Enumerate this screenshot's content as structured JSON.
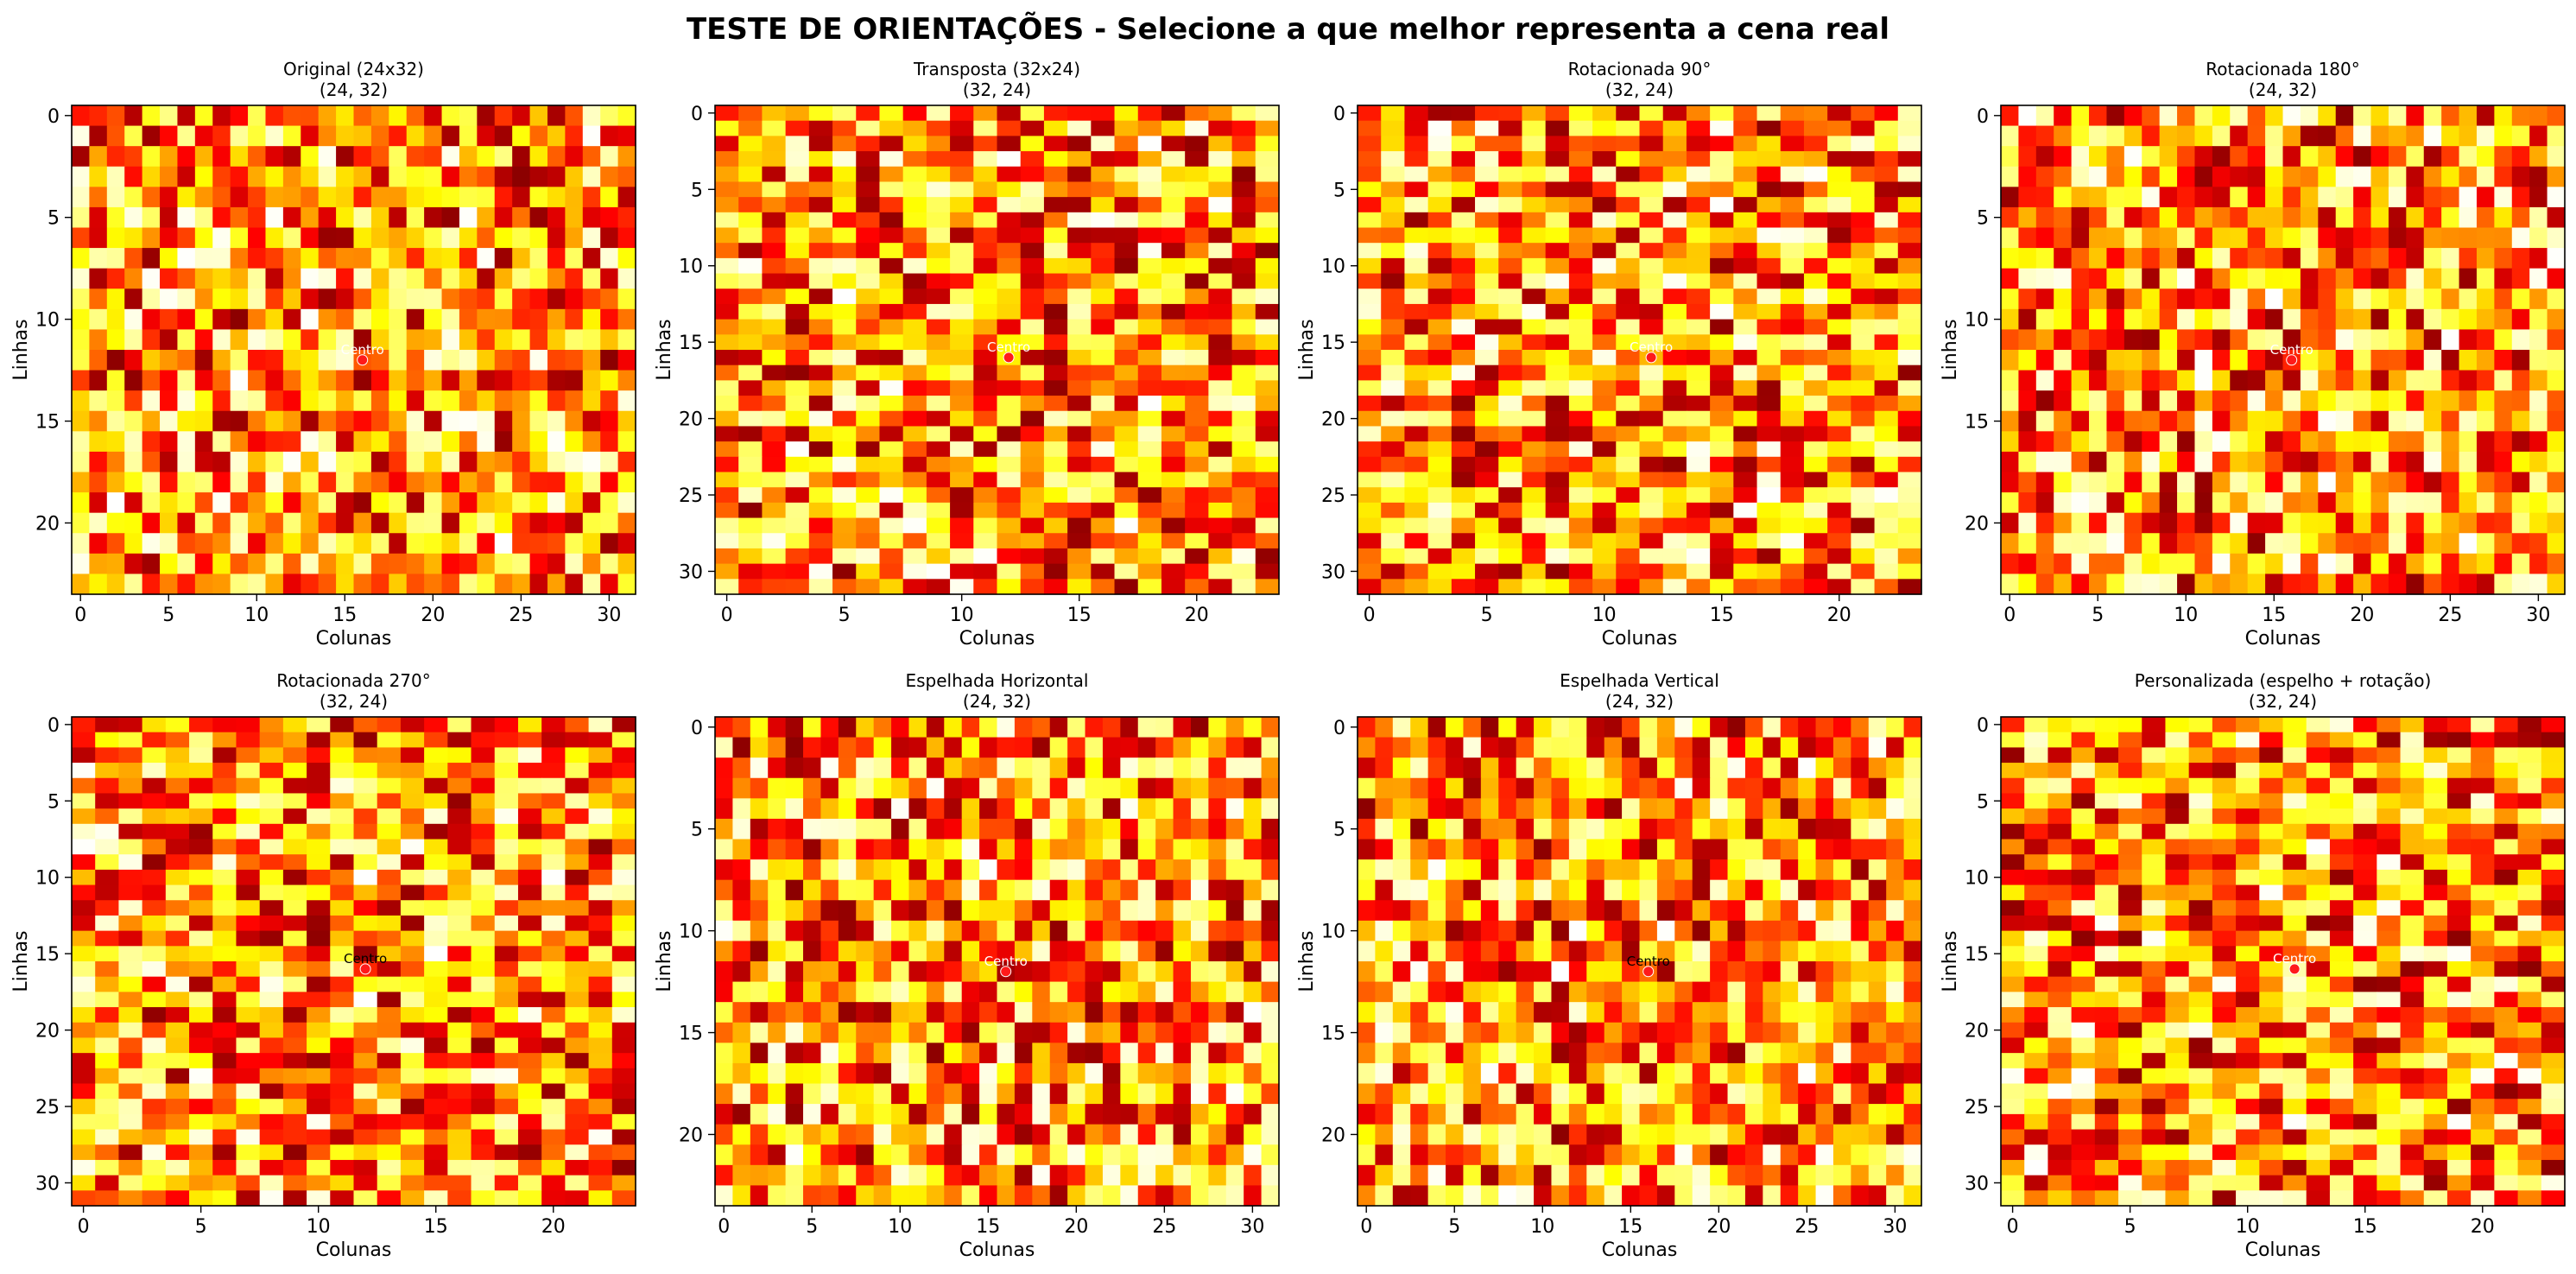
{
  "page": {
    "title": "TESTE DE ORIENTAÇÕES - Selecione a que melhor representa a cena real"
  },
  "chart_data": [
    {
      "type": "heatmap",
      "title": "Original (24x32)",
      "subtitle": "(24, 32)",
      "rows": 24,
      "cols": 32,
      "xlabel": "Colunas",
      "ylabel": "Linhas",
      "xticks": [
        0,
        5,
        10,
        15,
        20,
        25,
        30
      ],
      "yticks": [
        0,
        5,
        10,
        15,
        20
      ],
      "colormap": "hot",
      "marker": {
        "row": 12,
        "col": 16,
        "label": "Centro",
        "label_color": "#ffffff"
      },
      "seed": 11
    },
    {
      "type": "heatmap",
      "title": "Transposta (32x24)",
      "subtitle": "(32, 24)",
      "rows": 32,
      "cols": 24,
      "xlabel": "Colunas",
      "ylabel": "Linhas",
      "xticks": [
        0,
        5,
        10,
        15,
        20
      ],
      "yticks": [
        0,
        5,
        10,
        15,
        20,
        25,
        30
      ],
      "colormap": "hot",
      "marker": {
        "row": 16,
        "col": 12,
        "label": "Centro",
        "label_color": "#ffffff"
      },
      "seed": 23
    },
    {
      "type": "heatmap",
      "title": "Rotacionada 90°",
      "subtitle": "(32, 24)",
      "rows": 32,
      "cols": 24,
      "xlabel": "Colunas",
      "ylabel": "Linhas",
      "xticks": [
        0,
        5,
        10,
        15,
        20
      ],
      "yticks": [
        0,
        5,
        10,
        15,
        20,
        25,
        30
      ],
      "colormap": "hot",
      "marker": {
        "row": 16,
        "col": 12,
        "label": "Centro",
        "label_color": "#ffffff"
      },
      "seed": 37
    },
    {
      "type": "heatmap",
      "title": "Rotacionada 180°",
      "subtitle": "(24, 32)",
      "rows": 24,
      "cols": 32,
      "xlabel": "Colunas",
      "ylabel": "Linhas",
      "xticks": [
        0,
        5,
        10,
        15,
        20,
        25,
        30
      ],
      "yticks": [
        0,
        5,
        10,
        15,
        20
      ],
      "colormap": "hot",
      "marker": {
        "row": 12,
        "col": 16,
        "label": "Centro",
        "label_color": "#ffffff"
      },
      "seed": 41
    },
    {
      "type": "heatmap",
      "title": "Rotacionada 270°",
      "subtitle": "(32, 24)",
      "rows": 32,
      "cols": 24,
      "xlabel": "Colunas",
      "ylabel": "Linhas",
      "xticks": [
        0,
        5,
        10,
        15,
        20
      ],
      "yticks": [
        0,
        5,
        10,
        15,
        20,
        25,
        30
      ],
      "colormap": "hot",
      "marker": {
        "row": 16,
        "col": 12,
        "label": "Centro",
        "label_color": "#000000"
      },
      "seed": 53
    },
    {
      "type": "heatmap",
      "title": "Espelhada Horizontal",
      "subtitle": "(24, 32)",
      "rows": 24,
      "cols": 32,
      "xlabel": "Colunas",
      "ylabel": "Linhas",
      "xticks": [
        0,
        5,
        10,
        15,
        20,
        25,
        30
      ],
      "yticks": [
        0,
        5,
        10,
        15,
        20
      ],
      "colormap": "hot",
      "marker": {
        "row": 12,
        "col": 16,
        "label": "Centro",
        "label_color": "#ffffff"
      },
      "seed": 67
    },
    {
      "type": "heatmap",
      "title": "Espelhada Vertical",
      "subtitle": "(24, 32)",
      "rows": 24,
      "cols": 32,
      "xlabel": "Colunas",
      "ylabel": "Linhas",
      "xticks": [
        0,
        5,
        10,
        15,
        20,
        25,
        30
      ],
      "yticks": [
        0,
        5,
        10,
        15,
        20
      ],
      "colormap": "hot",
      "marker": {
        "row": 12,
        "col": 16,
        "label": "Centro",
        "label_color": "#000000"
      },
      "seed": 79
    },
    {
      "type": "heatmap",
      "title": "Personalizada (espelho + rotação)",
      "subtitle": "(32, 24)",
      "rows": 32,
      "cols": 24,
      "xlabel": "Colunas",
      "ylabel": "Linhas",
      "xticks": [
        0,
        5,
        10,
        15,
        20
      ],
      "yticks": [
        0,
        5,
        10,
        15,
        20,
        25,
        30
      ],
      "colormap": "hot",
      "marker": {
        "row": 16,
        "col": 12,
        "label": "Centro",
        "label_color": "#ffffff"
      },
      "seed": 83
    }
  ]
}
